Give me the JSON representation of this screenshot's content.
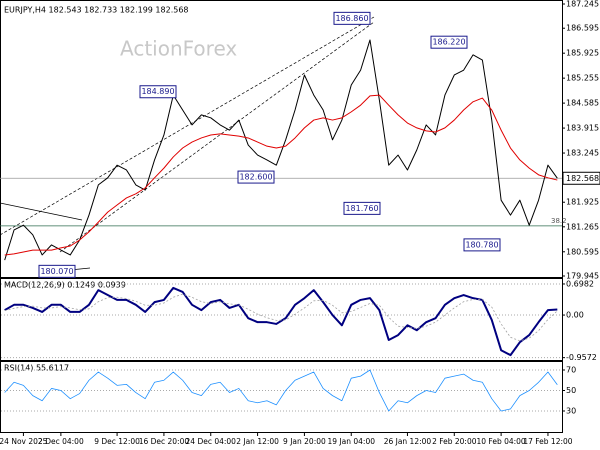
{
  "watermark": "ActionForex",
  "chart_data": [
    {
      "type": "line",
      "title": "EURJPY,H4 182.543 182.733 182.199 182.568",
      "ylim": [
        179.945,
        187.245
      ],
      "yticks": [
        179.945,
        180.595,
        181.265,
        181.925,
        183.245,
        183.915,
        184.585,
        185.255,
        185.925,
        186.595,
        187.245
      ],
      "grid": false,
      "current_price": 182.568,
      "series": [
        {
          "color": "#000000",
          "values": [
            180.37,
            181.18,
            181.31,
            181.05,
            180.51,
            180.78,
            180.64,
            180.51,
            180.91,
            181.58,
            182.39,
            182.58,
            182.92,
            182.79,
            182.39,
            182.25,
            183.06,
            183.73,
            184.8,
            184.4,
            184,
            184.27,
            184.19,
            184,
            183.86,
            184.13,
            183.46,
            183.19,
            183.06,
            182.92,
            183.6,
            184.4,
            185.34,
            184.8,
            184.4,
            183.6,
            184.13,
            185.07,
            185.47,
            186.28,
            184.67,
            182.92,
            183.19,
            182.79,
            183.33,
            184,
            183.73,
            184.8,
            185.34,
            185.47,
            185.88,
            185.74,
            184.13,
            181.98,
            181.58,
            181.98,
            181.31,
            181.98,
            182.92,
            182.57
          ]
        },
        {
          "color": "#e00000",
          "values": [
            180.51,
            180.54,
            180.59,
            180.64,
            180.64,
            180.64,
            180.7,
            180.75,
            180.91,
            181.13,
            181.39,
            181.66,
            181.85,
            182.04,
            182.15,
            182.31,
            182.58,
            182.84,
            183.14,
            183.38,
            183.54,
            183.65,
            183.73,
            183.76,
            183.73,
            183.7,
            183.65,
            183.54,
            183.43,
            183.38,
            183.43,
            183.65,
            183.92,
            184.13,
            184.19,
            184.13,
            184.19,
            184.35,
            184.53,
            184.78,
            184.8,
            184.53,
            184.27,
            184.05,
            183.92,
            183.84,
            183.81,
            183.92,
            184.13,
            184.4,
            184.62,
            184.72,
            184.4,
            183.86,
            183.38,
            183.06,
            182.84,
            182.66,
            182.58,
            182.52
          ]
        }
      ],
      "annotations": [
        {
          "label": "186.860",
          "value": 186.86
        },
        {
          "label": "184.890",
          "value": 184.89
        },
        {
          "label": "182.600",
          "value": 182.6
        },
        {
          "label": "181.760",
          "value": 181.76
        },
        {
          "label": "186.220",
          "value": 186.22
        },
        {
          "label": "180.780",
          "value": 180.78
        },
        {
          "label": "180.070",
          "value": 180.07
        }
      ],
      "levels": [
        {
          "label": "38.2",
          "value": 181.29
        }
      ]
    },
    {
      "type": "line",
      "title": "MACD(12,26,9) 0.1249 0.0939",
      "ylim": [
        -1.01,
        0.81
      ],
      "yticks": [
        0.6982,
        {
          "value": 0,
          "label": "0.00"
        },
        -0.9572
      ],
      "grid": true,
      "series": [
        {
          "color": "#000080",
          "values": [
            0.11,
            0.23,
            0.23,
            0.16,
            0.07,
            0.23,
            0.23,
            0.07,
            0.07,
            0.23,
            0.56,
            0.45,
            0.34,
            0.34,
            0.23,
            0.07,
            0.29,
            0.34,
            0.61,
            0.52,
            0.23,
            0.11,
            0.29,
            0.34,
            0.16,
            0.23,
            -0.07,
            -0.16,
            -0.16,
            -0.2,
            -0.07,
            0.23,
            0.38,
            0.56,
            0.29,
            0,
            -0.23,
            0.23,
            0.34,
            0.38,
            0.11,
            -0.56,
            -0.45,
            -0.23,
            -0.34,
            -0.16,
            -0.07,
            0.23,
            0.38,
            0.45,
            0.38,
            0.34,
            -0.11,
            -0.79,
            -0.9,
            -0.61,
            -0.45,
            -0.16,
            0.11,
            0.1249
          ]
        },
        {
          "color": "#a0a0a0",
          "values": [
            0.1,
            0.15,
            0.19,
            0.2,
            0.16,
            0.16,
            0.19,
            0.16,
            0.12,
            0.14,
            0.3,
            0.39,
            0.4,
            0.37,
            0.31,
            0.22,
            0.22,
            0.27,
            0.4,
            0.47,
            0.4,
            0.3,
            0.26,
            0.3,
            0.25,
            0.23,
            0.13,
            0.02,
            -0.06,
            -0.12,
            -0.11,
            0.02,
            0.16,
            0.32,
            0.33,
            0.22,
            0.05,
            0.08,
            0.17,
            0.26,
            0.22,
            -0.05,
            -0.25,
            -0.28,
            -0.3,
            -0.25,
            -0.16,
            0,
            0.16,
            0.3,
            0.35,
            0.35,
            0.18,
            -0.2,
            -0.5,
            -0.58,
            -0.52,
            -0.35,
            -0.1,
            0.0939
          ]
        }
      ]
    },
    {
      "type": "line",
      "title": "RSI(14) 55.6117",
      "ylim": [
        9.5,
        77.8
      ],
      "yticks": [
        30,
        50,
        70
      ],
      "grid": true,
      "categories": [
        null,
        null,
        "24 Nov 2025",
        null,
        null,
        null,
        "2 Dec 04:00",
        null,
        null,
        null,
        null,
        null,
        "9 Dec 12:00",
        null,
        null,
        null,
        null,
        "16 Dec 20:00",
        null,
        null,
        null,
        null,
        "24 Dec 04:00",
        null,
        null,
        null,
        null,
        "2 Jan 12:00",
        null,
        null,
        null,
        null,
        "9 Jan 20:00",
        null,
        null,
        null,
        null,
        "19 Jan 04:00",
        null,
        null,
        null,
        null,
        null,
        "26 Jan 12:00",
        null,
        null,
        null,
        null,
        "2 Feb 20:00",
        null,
        null,
        null,
        null,
        "10 Feb 04:00",
        null,
        null,
        null,
        null,
        "17 Feb 12:00",
        null
      ],
      "series": [
        {
          "color": "#1e90ff",
          "values": [
            48,
            58,
            55,
            45,
            40,
            52,
            50,
            42,
            47,
            60,
            68,
            62,
            55,
            56,
            48,
            42,
            58,
            60,
            68,
            60,
            48,
            45,
            56,
            58,
            48,
            52,
            40,
            38,
            40,
            36,
            50,
            60,
            64,
            68,
            52,
            45,
            40,
            62,
            64,
            70,
            48,
            30,
            40,
            38,
            45,
            50,
            48,
            62,
            64,
            66,
            60,
            58,
            42,
            30,
            32,
            45,
            50,
            58,
            68,
            55.6117
          ]
        }
      ]
    }
  ]
}
